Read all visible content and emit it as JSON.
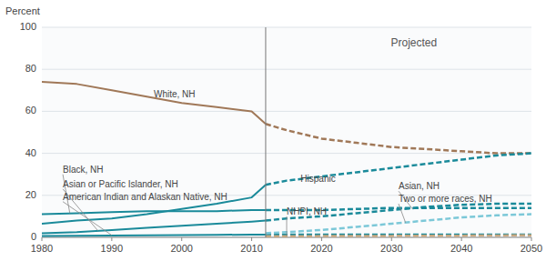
{
  "chart_data": {
    "type": "line",
    "y_label": "Percent",
    "x": [
      1980,
      1985,
      1990,
      1995,
      2000,
      2005,
      2010,
      2012,
      2015,
      2020,
      2025,
      2030,
      2035,
      2040,
      2045,
      2050
    ],
    "xlim": [
      1980,
      2050
    ],
    "xticks": [
      1980,
      1990,
      2000,
      2010,
      2020,
      2030,
      2040,
      2050
    ],
    "ylim": [
      0,
      100
    ],
    "yticks": [
      0,
      20,
      40,
      60,
      80,
      100
    ],
    "grid": true,
    "split_x": 2012,
    "projected_label": "Projected",
    "series": [
      {
        "color": "#a07858",
        "line_style": "solid",
        "values": [
          74,
          73,
          70,
          67,
          64,
          62,
          60,
          54,
          null,
          null,
          null,
          null,
          null,
          null,
          null,
          null
        ]
      },
      {
        "color": "#1a8a9a",
        "line_style": "solid",
        "values": [
          11,
          11.5,
          12,
          12.5,
          12.5,
          12.5,
          13,
          13,
          null,
          null,
          null,
          null,
          null,
          null,
          null,
          null
        ]
      },
      {
        "color": "#1a8a9a",
        "line_style": "solid",
        "values": [
          2,
          2.5,
          3.5,
          4.5,
          5.5,
          6.5,
          7.5,
          8,
          null,
          null,
          null,
          null,
          null,
          null,
          null,
          null
        ]
      },
      {
        "color": "#1a8a9a",
        "line_style": "solid",
        "values": [
          0.7,
          0.8,
          0.9,
          1.0,
          1.1,
          1.2,
          1.3,
          1.3,
          null,
          null,
          null,
          null,
          null,
          null,
          null,
          null
        ]
      },
      {
        "color": "#1a8a9a",
        "line_style": "solid",
        "values": [
          6.5,
          8,
          9,
          11,
          13.5,
          16,
          19,
          25,
          null,
          null,
          null,
          null,
          null,
          null,
          null,
          null
        ]
      },
      {
        "color": "#a07858",
        "line_style": "dashed",
        "values": [
          null,
          null,
          null,
          null,
          null,
          null,
          null,
          54,
          51,
          47,
          45,
          43,
          42,
          41,
          40,
          40
        ]
      },
      {
        "color": "#1a8a9a",
        "line_style": "dashed",
        "values": [
          null,
          null,
          null,
          null,
          null,
          null,
          null,
          13,
          13,
          13,
          13.5,
          14,
          14,
          14,
          14,
          14
        ]
      },
      {
        "color": "#1a8a9a",
        "line_style": "dashed",
        "values": [
          null,
          null,
          null,
          null,
          null,
          null,
          null,
          8,
          9,
          10,
          11.5,
          13,
          14.5,
          15.5,
          16,
          16
        ]
      },
      {
        "color": "#1a8a9a",
        "line_style": "dashed",
        "values": [
          null,
          null,
          null,
          null,
          null,
          null,
          null,
          1.3,
          1.3,
          1.3,
          1.3,
          1.3,
          1.3,
          1.3,
          1.3,
          1.3
        ]
      },
      {
        "color": "#1a8a9a",
        "line_style": "dashed",
        "values": [
          null,
          null,
          null,
          null,
          null,
          null,
          null,
          25,
          27,
          29,
          31,
          33,
          35,
          37,
          39,
          40
        ]
      },
      {
        "color": "#7cc8d8",
        "line_style": "dashed",
        "values": [
          null,
          null,
          null,
          null,
          null,
          null,
          null,
          2,
          2.5,
          3.5,
          5,
          6.5,
          8,
          9.5,
          10.5,
          11
        ]
      },
      {
        "color": "#c8a882",
        "line_style": "dashed",
        "values": [
          null,
          null,
          null,
          null,
          null,
          null,
          null,
          0.5,
          0.5,
          0.6,
          0.7,
          0.7,
          0.8,
          0.8,
          0.9,
          1.0
        ]
      }
    ],
    "annotations": [
      {
        "text": "White, NH",
        "x": 1996,
        "y": 68
      },
      {
        "text": "Black, NH",
        "x": 1983,
        "y": 30,
        "arrow_x": 1984,
        "arrow_y": 11.5
      },
      {
        "text": "Asian or Pacific Islander, NH",
        "x": 1983,
        "y": 23,
        "arrow_x": 1988,
        "arrow_y": 3.2
      },
      {
        "text": "American Indian and Alaskan Native, NH",
        "x": 1983,
        "y": 17,
        "arrow_x": 1990,
        "arrow_y": 1.0
      },
      {
        "text": "Hispanic",
        "x": 2017,
        "y": 27.5
      },
      {
        "text": "Asian, NH",
        "x": 2031,
        "y": 22,
        "arrow_x": 2033,
        "arrow_y": 13.5
      },
      {
        "text": "Two or more races, NH",
        "x": 2031,
        "y": 16,
        "arrow_x": 2032,
        "arrow_y": 7.0
      },
      {
        "text": "NHPI, NH",
        "x": 2015,
        "y": 10,
        "arrow_x": 2015,
        "arrow_y": 0.6
      }
    ]
  }
}
